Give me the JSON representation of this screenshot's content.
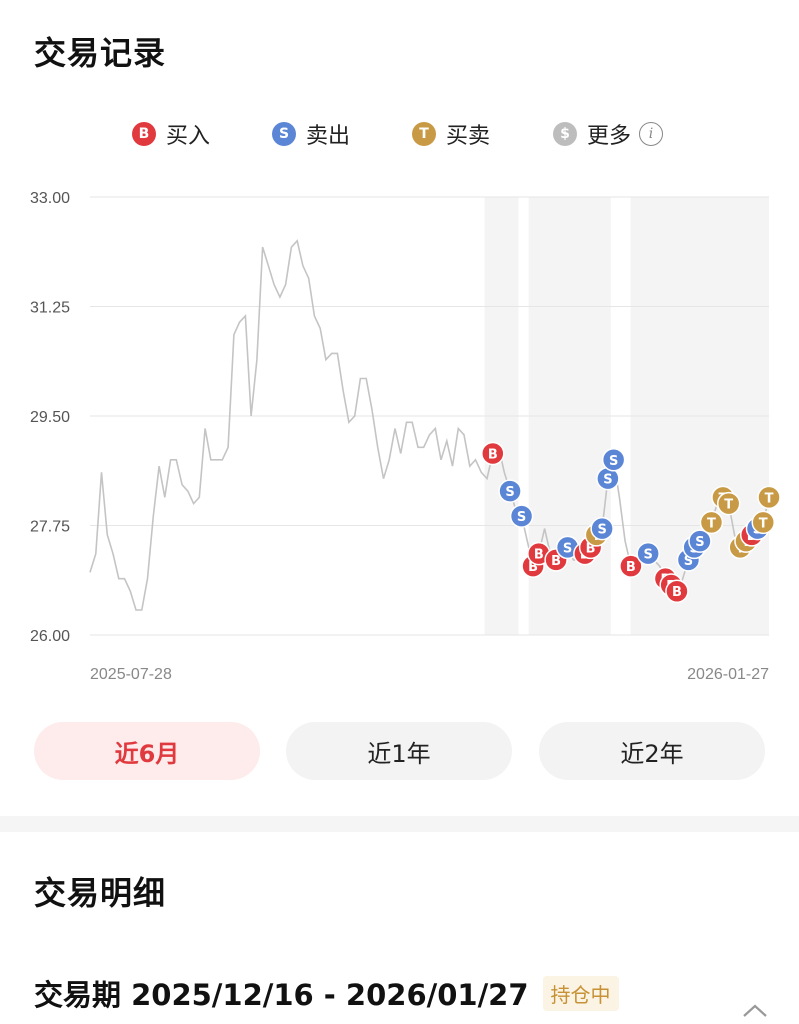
{
  "section1_title": "交易记录",
  "legend": [
    {
      "glyph": "B",
      "label": "买入",
      "color": "#e0393e"
    },
    {
      "glyph": "S",
      "label": "卖出",
      "color": "#5b86d6"
    },
    {
      "glyph": "T",
      "label": "买卖",
      "color": "#c99a45"
    },
    {
      "glyph": "$",
      "label": "更多",
      "color": "#bdbdbd"
    }
  ],
  "info_icon": "info-icon",
  "chart_data": {
    "type": "line",
    "y_ticks": [
      "33.00",
      "31.25",
      "29.50",
      "27.75",
      "26.00"
    ],
    "ylim": [
      26.0,
      33.0
    ],
    "x_start": "2025-07-28",
    "x_end": "2026-01-27",
    "grid": true,
    "line_color": "#c4c4c4",
    "shaded_periods": [
      [
        0.581,
        0.631
      ],
      [
        0.646,
        0.767
      ],
      [
        0.796,
        1.0
      ]
    ],
    "price": [
      27.0,
      27.3,
      28.6,
      27.6,
      27.3,
      26.9,
      26.9,
      26.7,
      26.4,
      26.4,
      26.9,
      27.9,
      28.7,
      28.2,
      28.8,
      28.8,
      28.4,
      28.3,
      28.1,
      28.2,
      29.3,
      28.8,
      28.8,
      28.8,
      29.0,
      30.8,
      31.0,
      31.1,
      29.5,
      30.4,
      32.2,
      31.9,
      31.6,
      31.4,
      31.6,
      32.2,
      32.3,
      31.9,
      31.7,
      31.1,
      30.9,
      30.4,
      30.5,
      30.5,
      29.9,
      29.4,
      29.5,
      30.1,
      30.1,
      29.6,
      29.0,
      28.5,
      28.8,
      29.3,
      28.9,
      29.4,
      29.4,
      29.0,
      29.0,
      29.2,
      29.3,
      28.8,
      29.1,
      28.7,
      29.3,
      29.2,
      28.7,
      28.8,
      28.6,
      28.5,
      28.9,
      29.0,
      28.6,
      28.3,
      28.0,
      27.9,
      27.5,
      27.1,
      27.3,
      27.7,
      27.3,
      27.2,
      27.3,
      27.4,
      27.2,
      27.2,
      27.3,
      27.4,
      27.6,
      27.7,
      28.5,
      28.8,
      28.2,
      27.5,
      27.1,
      27.2,
      27.4,
      27.3,
      27.2,
      27.1,
      26.9,
      26.8,
      26.7,
      26.9,
      27.2,
      27.4,
      27.5,
      27.6,
      27.8,
      28.1,
      28.2,
      28.1,
      27.6,
      27.4,
      27.5,
      27.6,
      27.7,
      27.8,
      28.2
    ],
    "markers": [
      {
        "type": "B",
        "i": 70
      },
      {
        "type": "S",
        "i": 73
      },
      {
        "type": "S",
        "i": 75
      },
      {
        "type": "B",
        "i": 77
      },
      {
        "type": "B",
        "i": 78
      },
      {
        "type": "B",
        "i": 81
      },
      {
        "type": "S",
        "i": 83
      },
      {
        "type": "B",
        "i": 86
      },
      {
        "type": "B",
        "i": 87
      },
      {
        "type": "T",
        "i": 88
      },
      {
        "type": "S",
        "i": 89
      },
      {
        "type": "S",
        "i": 90
      },
      {
        "type": "S",
        "i": 91
      },
      {
        "type": "B",
        "i": 94
      },
      {
        "type": "S",
        "i": 97
      },
      {
        "type": "B",
        "i": 100
      },
      {
        "type": "B",
        "i": 101
      },
      {
        "type": "B",
        "i": 102
      },
      {
        "type": "S",
        "i": 104
      },
      {
        "type": "S",
        "i": 105
      },
      {
        "type": "S",
        "i": 106
      },
      {
        "type": "T",
        "i": 108
      },
      {
        "type": "T",
        "i": 110
      },
      {
        "type": "T",
        "i": 111
      },
      {
        "type": "T",
        "i": 113
      },
      {
        "type": "T",
        "i": 114
      },
      {
        "type": "B",
        "i": 115
      },
      {
        "type": "S",
        "i": 116
      },
      {
        "type": "T",
        "i": 117
      },
      {
        "type": "T",
        "i": 118
      }
    ],
    "marker_colors": {
      "B": "#e0393e",
      "S": "#5b86d6",
      "T": "#c99a45"
    }
  },
  "ranges": [
    {
      "label": "近6月",
      "active": true
    },
    {
      "label": "近1年",
      "active": false
    },
    {
      "label": "近2年",
      "active": false
    }
  ],
  "section2_title": "交易明细",
  "trade_period": "交易期 2025/12/16 - 2026/01/27",
  "holding_badge": "持仓中",
  "collapse_icon": "chevron-up-icon"
}
